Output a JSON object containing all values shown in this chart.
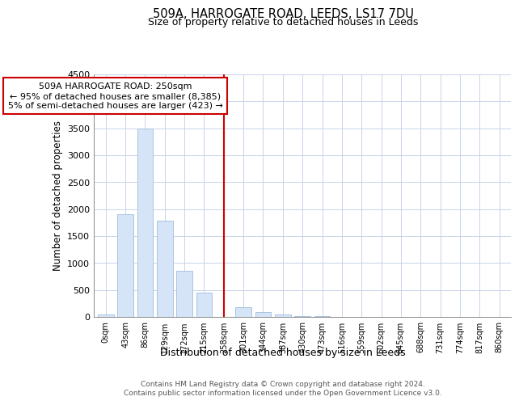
{
  "title": "509A, HARROGATE ROAD, LEEDS, LS17 7DU",
  "subtitle": "Size of property relative to detached houses in Leeds",
  "xlabel": "Distribution of detached houses by size in Leeds",
  "ylabel": "Number of detached properties",
  "footnote1": "Contains HM Land Registry data © Crown copyright and database right 2024.",
  "footnote2": "Contains public sector information licensed under the Open Government Licence v3.0.",
  "annotation_line1": "509A HARROGATE ROAD: 250sqm",
  "annotation_line2": "← 95% of detached houses are smaller (8,385)",
  "annotation_line3": "5% of semi-detached houses are larger (423) →",
  "bar_face_color": "#d6e4f7",
  "bar_edge_color": "#a8c4e0",
  "line_color": "#cc0000",
  "categories": [
    "0sqm",
    "43sqm",
    "86sqm",
    "129sqm",
    "172sqm",
    "215sqm",
    "258sqm",
    "301sqm",
    "344sqm",
    "387sqm",
    "430sqm",
    "473sqm",
    "516sqm",
    "559sqm",
    "602sqm",
    "645sqm",
    "688sqm",
    "731sqm",
    "774sqm",
    "817sqm",
    "860sqm"
  ],
  "values": [
    40,
    1910,
    3490,
    1780,
    860,
    450,
    0,
    180,
    90,
    50,
    20,
    10,
    0,
    0,
    0,
    0,
    0,
    0,
    0,
    0,
    0
  ],
  "ylim": [
    0,
    4500
  ],
  "yticks": [
    0,
    500,
    1000,
    1500,
    2000,
    2500,
    3000,
    3500,
    4000,
    4500
  ],
  "property_bin_index": 6,
  "background_color": "#ffffff",
  "grid_color": "#c8d4e8"
}
